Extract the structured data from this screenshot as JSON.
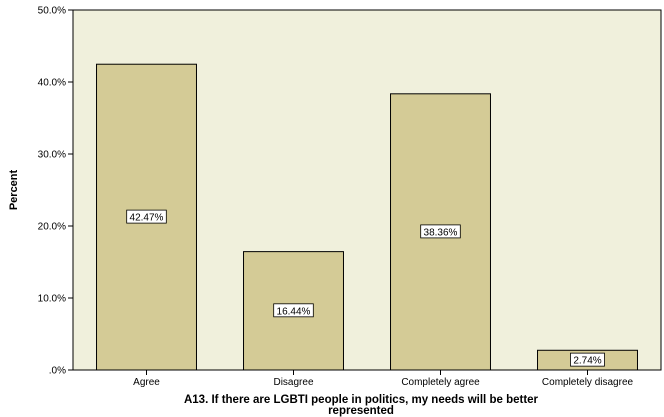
{
  "chart_data": {
    "type": "bar",
    "categories": [
      "Agree",
      "Disagree",
      "Completely agree",
      "Completely disagree"
    ],
    "values": [
      42.47,
      16.44,
      38.36,
      2.74
    ],
    "data_labels": [
      "42.47%",
      "16.44%",
      "38.36%",
      "2.74%"
    ],
    "ylabel": "Percent",
    "xlabel_lines": [
      "A13. If there are LGBTI people in politics, my needs will be better",
      "represented"
    ],
    "ylim": [
      0,
      50
    ],
    "yticks": [
      0,
      10,
      20,
      30,
      40,
      50
    ],
    "ytick_labels": [
      ".0%",
      "10.0%",
      "20.0%",
      "30.0%",
      "40.0%",
      "50.0%"
    ],
    "grid": false,
    "legend": "none",
    "colors": {
      "plot_bg": "#f0f0dc",
      "bar_fill": "#d4cb96",
      "bar_stroke": "#000000",
      "label_bg": "#ffffff"
    }
  }
}
